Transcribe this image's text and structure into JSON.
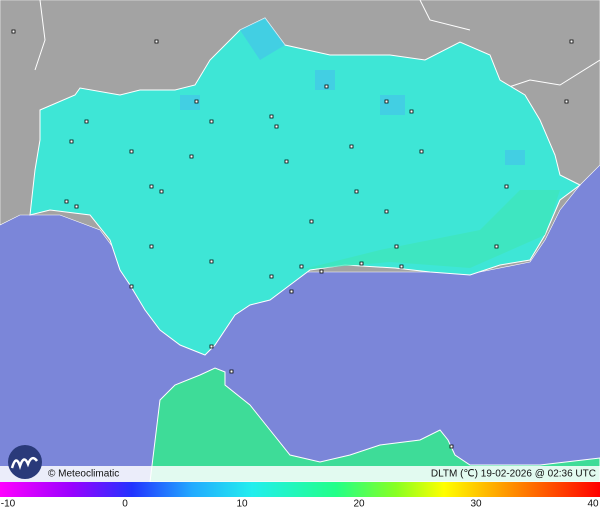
{
  "map": {
    "footer": {
      "credit": "© Meteoclimatic",
      "caption": "DLTM (℃) 19-02-2026 @ 02:36 UTC"
    },
    "colorbar": {
      "range": [
        -10,
        40
      ],
      "ticks": [
        -10,
        0,
        10,
        20,
        30,
        40
      ]
    }
  }
}
